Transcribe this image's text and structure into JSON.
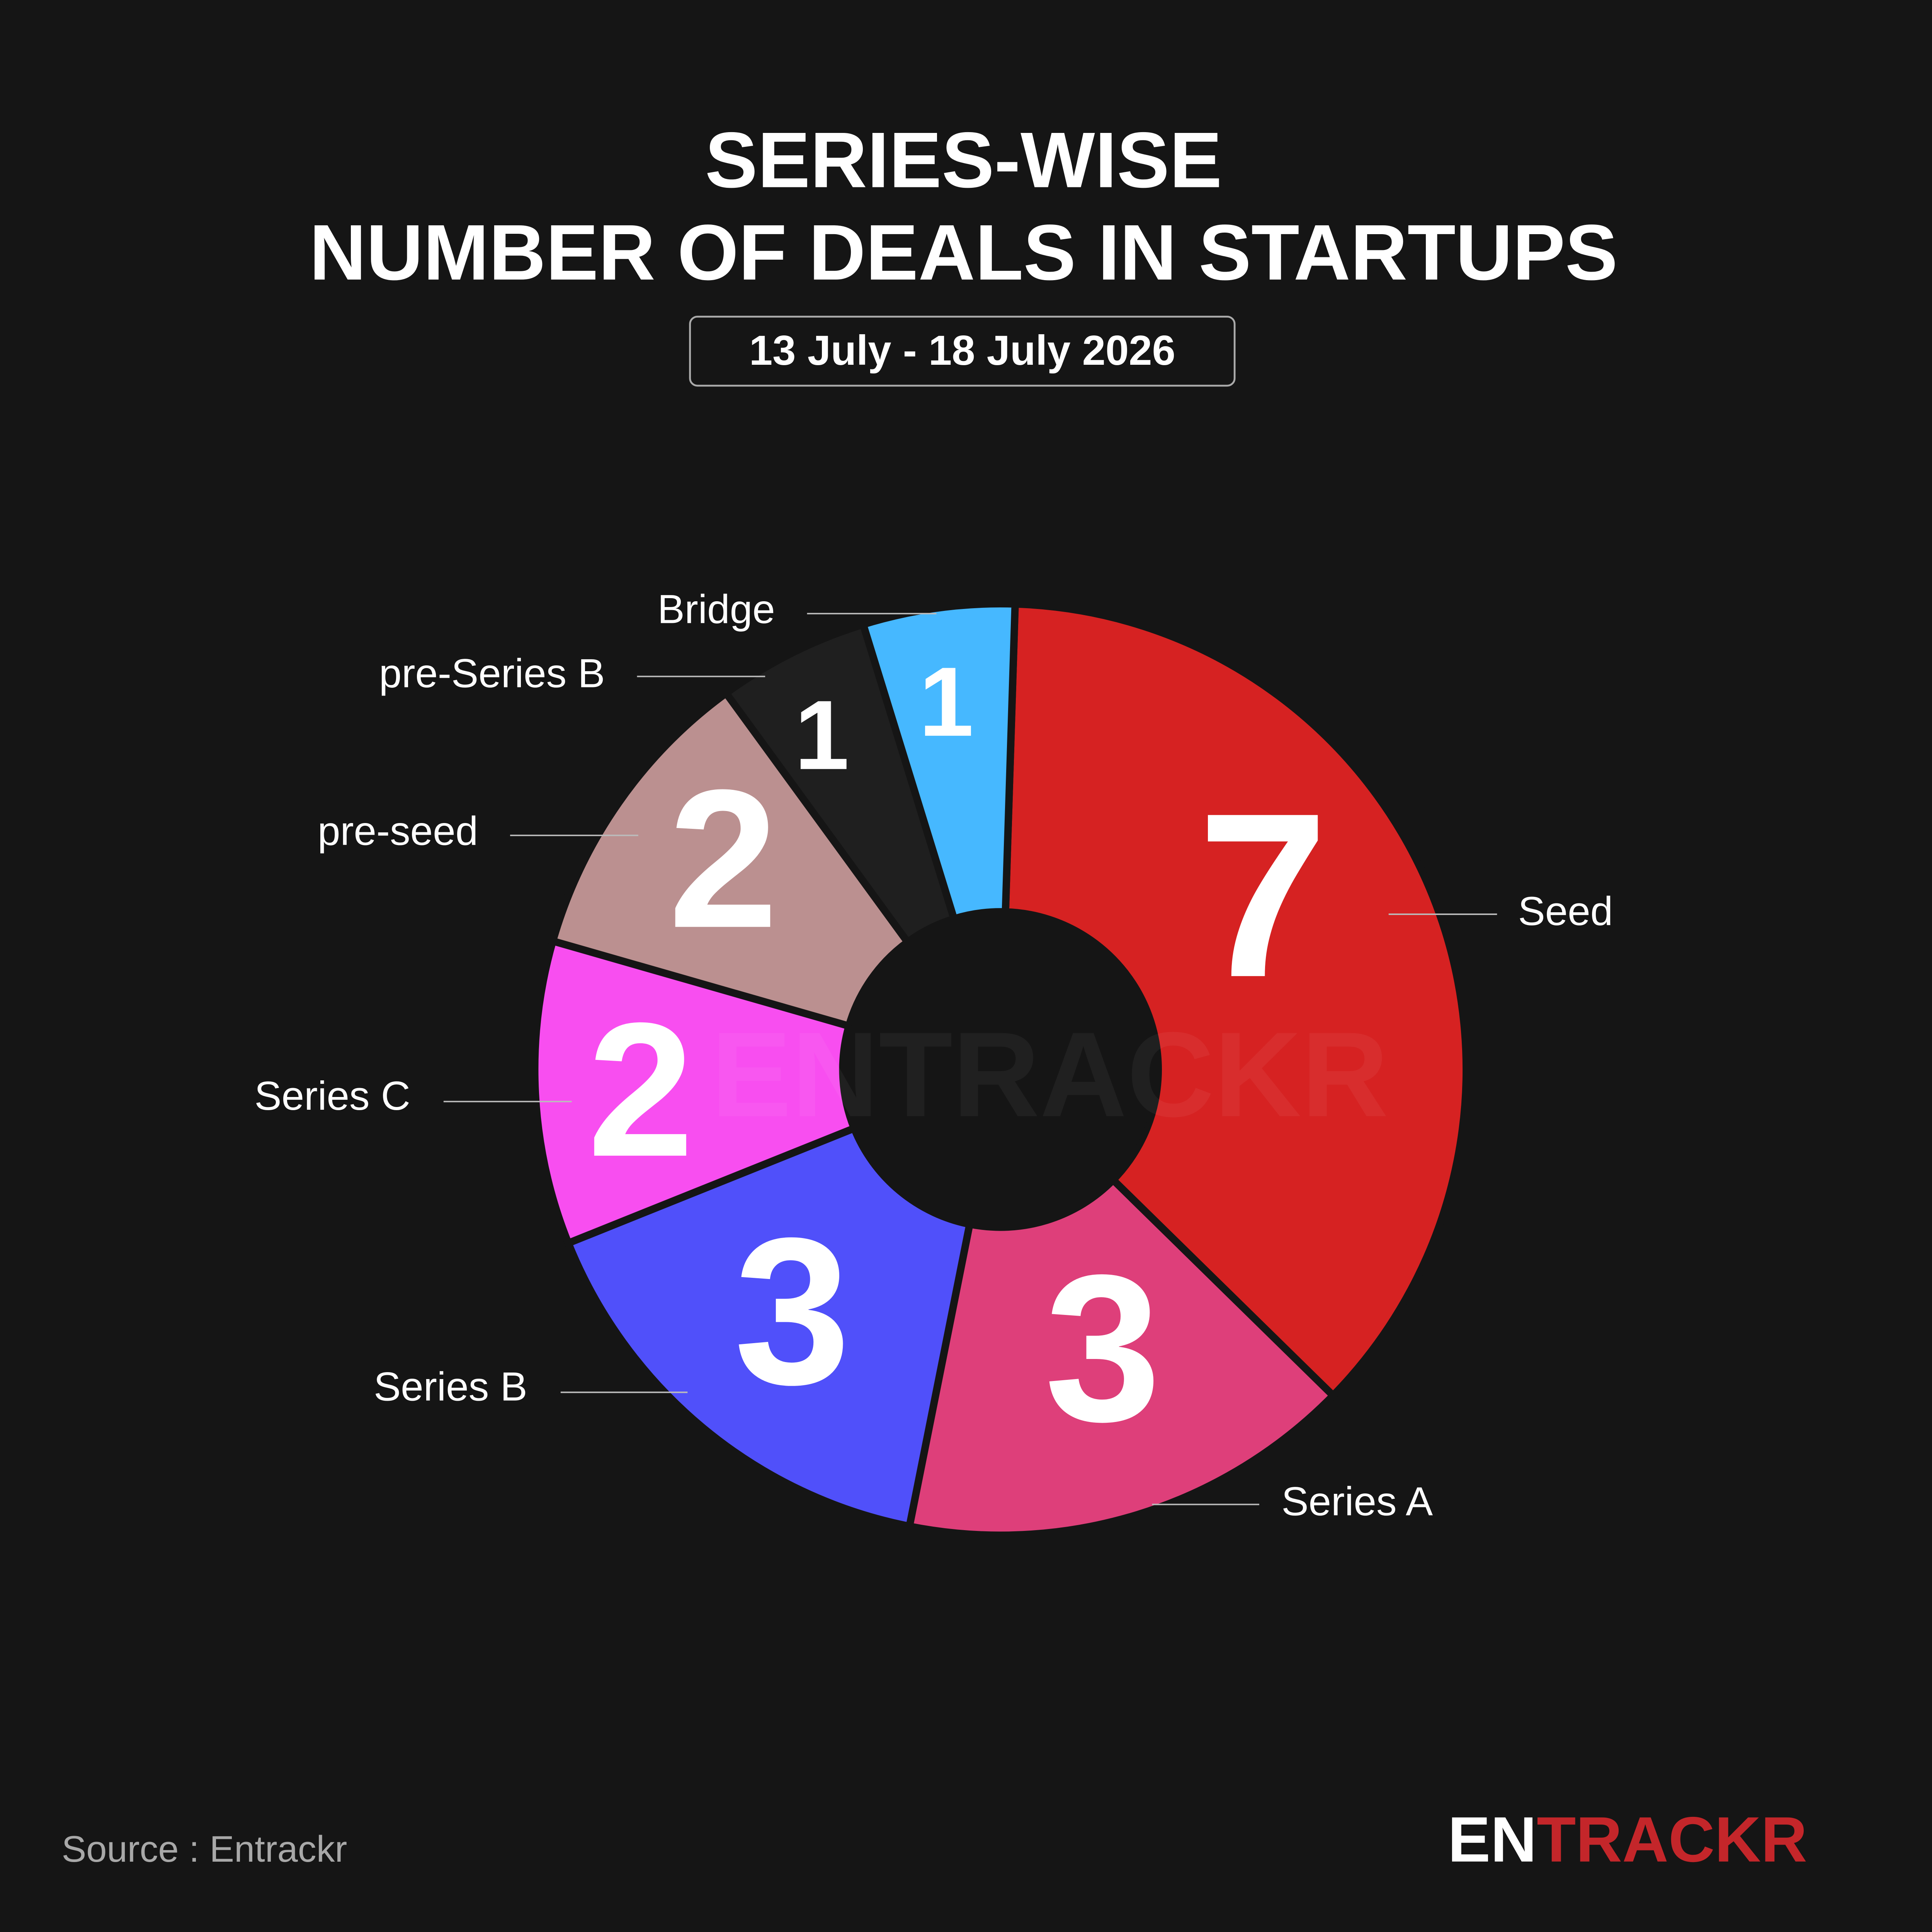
{
  "chart_data": {
    "type": "donut",
    "title": [
      "SERIES-WISE",
      "NUMBER OF DEALS IN STARTUPS"
    ],
    "subtitle": "13 July - 18 July 2026",
    "categories": [
      "Seed",
      "Series A",
      "Series B",
      "Series C",
      "pre-seed",
      "pre-Series B",
      "Bridge"
    ],
    "values": [
      7,
      3,
      3,
      2,
      2,
      1,
      1
    ],
    "colors": [
      "#d62222",
      "#de3f7a",
      "#5050fa",
      "#f84ef0",
      "#bb9090",
      "#1f1f1f",
      "#46b8ff"
    ],
    "source": "Source : Entrackr",
    "logo": [
      "EN",
      "TRACKR"
    ],
    "watermark": "ENTRACKR"
  }
}
